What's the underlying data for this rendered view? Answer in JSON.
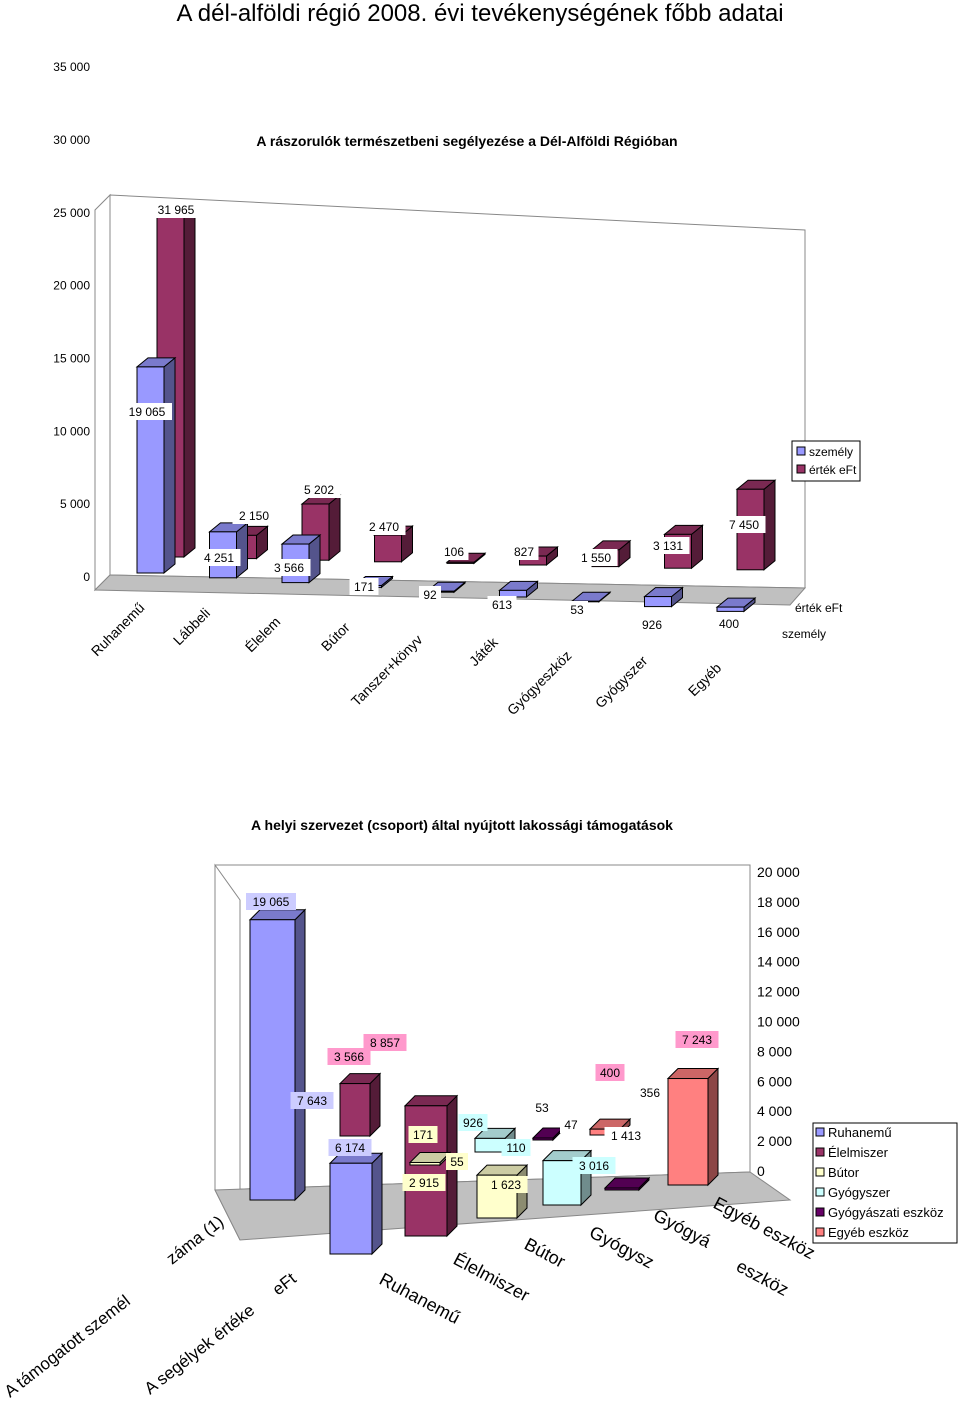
{
  "page": {
    "title": "A dél-alföldi régió 2008. évi tevékenységének főbb adatai"
  },
  "chart_data": [
    {
      "type": "bar",
      "title": "A rászorulók természetbeni segélyezése a Dél-Alföldi Régióban",
      "categories": [
        "Ruhanemű",
        "Lábbeli",
        "Élelem",
        "Bútor",
        "Tanszer+könyv",
        "Játék",
        "Gyógyeszköz",
        "Gyógyszer",
        "Egyéb"
      ],
      "series": [
        {
          "name": "személy",
          "values": [
            19065,
            4251,
            3566,
            171,
            92,
            613,
            53,
            926,
            400
          ],
          "color": "#9999ff"
        },
        {
          "name": "érték eFt",
          "values": [
            31965,
            2150,
            5202,
            2470,
            106,
            827,
            1550,
            3131,
            7450
          ],
          "color": "#993366"
        }
      ],
      "yticks": [
        "35 000",
        "30 000",
        "25 000",
        "20 000",
        "15 000",
        "10 000",
        "5 000",
        "0"
      ],
      "ylim": [
        0,
        35000
      ],
      "data_labels": {
        "személy": [
          "19 065",
          "4 251",
          "3 566",
          "171",
          "92",
          "613",
          "53",
          "926",
          "400"
        ],
        "érték eFt": [
          "31 965",
          "2 150",
          "5 202",
          "2 470",
          "106",
          "827",
          "1 550",
          "3 131",
          "7 450"
        ]
      },
      "depth_labels": [
        "érték eFt",
        "személy"
      ],
      "legend": [
        "személy",
        "érték eFt"
      ],
      "legend_position": "right",
      "grid": false
    },
    {
      "type": "bar",
      "title": "A helyi szervezet (csoport) által nyújtott lakossági támogatások",
      "categories": [
        "A támogatott személ… száma (1)",
        "A segélyek értéke eFt"
      ],
      "category_labels": [
        "A támogatott személ",
        "záma (1)",
        "A segélyek értéke",
        "eFt"
      ],
      "series": [
        {
          "name": "Ruhanemű",
          "values": [
            19065,
            6174
          ],
          "labels": [
            "19 065",
            "6 174"
          ],
          "color": "#9999ff"
        },
        {
          "name": "Élelmiszer",
          "values": [
            3566,
            8857
          ],
          "labels": [
            "3 566",
            "8 857"
          ],
          "color": "#993366"
        },
        {
          "name": "Bútor",
          "values": [
            171,
            2915
          ],
          "labels": [
            "171",
            "2 915"
          ],
          "color": "#ffffcc"
        },
        {
          "name": "Gyógyszer",
          "values": [
            926,
            3016
          ],
          "labels": [
            "926",
            "3 016"
          ],
          "color": "#ccffff"
        },
        {
          "name": "Gyógyászati eszköz",
          "values": [
            53,
            47
          ],
          "labels": [
            "53",
            "47"
          ],
          "color": "#660066"
        },
        {
          "name": "Egyéb eszköz",
          "values": [
            400,
            7243
          ],
          "labels": [
            "400",
            "7 243"
          ],
          "color": "#ff8080"
        }
      ],
      "extra_labels": [
        "7 643",
        "55",
        "110",
        "1 623",
        "1 413",
        "356"
      ],
      "yticks": [
        "20 000",
        "18 000",
        "16 000",
        "14 000",
        "12 000",
        "10 000",
        "8 000",
        "6 000",
        "4 000",
        "2 000",
        "0"
      ],
      "ylim": [
        0,
        20000
      ],
      "depth_labels": [
        "Ruhanemű",
        "Élelmiszer",
        "Bútor",
        "Gyógysz",
        "Gyógyá",
        "Egyéb eszköz",
        "eszköz"
      ],
      "legend": [
        "Ruhanemű",
        "Élelmiszer",
        "Bútor",
        "Gyógyszer",
        "Gyógyászati eszköz",
        "Egyéb eszköz"
      ],
      "legend_position": "right",
      "grid": false
    }
  ]
}
